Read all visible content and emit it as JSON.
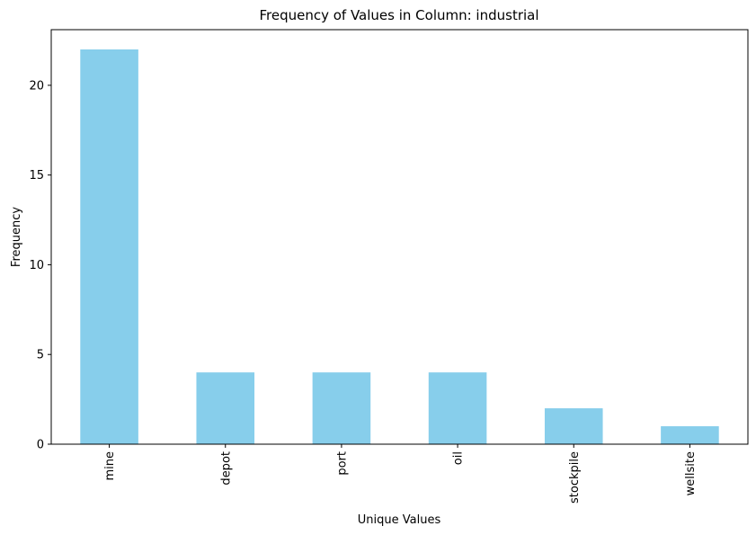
{
  "chart_data": {
    "type": "bar",
    "title": "Frequency of Values in Column: industrial",
    "xlabel": "Unique Values",
    "ylabel": "Frequency",
    "categories": [
      "mine",
      "depot",
      "port",
      "oil",
      "stockpile",
      "wellsite"
    ],
    "values": [
      22,
      4,
      4,
      4,
      2,
      1
    ],
    "ylim": [
      0,
      23.1
    ],
    "yticks": [
      0,
      5,
      10,
      15,
      20
    ],
    "bar_color": "#87ceeb",
    "grid": false,
    "legend": "none"
  }
}
